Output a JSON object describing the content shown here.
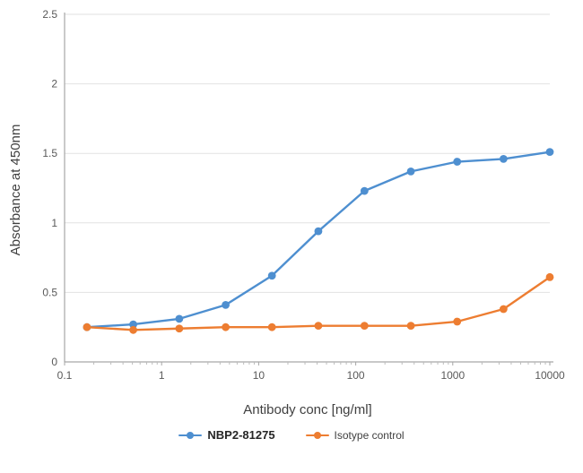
{
  "chart_data": {
    "type": "line",
    "xscale": "log",
    "title": "",
    "xlabel": "Antibody conc [ng/ml]",
    "ylabel": "Absorbance at 450nm",
    "xlim": [
      0.1,
      10000
    ],
    "ylim": [
      0,
      2.5
    ],
    "xticks": [
      0.1,
      1,
      10,
      100,
      1000,
      10000
    ],
    "xtick_labels": [
      "0.1",
      "1",
      "10",
      "100",
      "1000",
      "10000"
    ],
    "yticks": [
      0,
      0.5,
      1,
      1.5,
      2,
      2.5
    ],
    "ytick_labels": [
      "0",
      "0.5",
      "1",
      "1.5",
      "2",
      "2.5"
    ],
    "grid": "horizontal",
    "legend_position": "bottom",
    "x": [
      0.17,
      0.51,
      1.52,
      4.57,
      13.7,
      41.2,
      123,
      370,
      1111,
      3333,
      10000
    ],
    "series": [
      {
        "name": "NBP2-81275",
        "color": "#4e8fd0",
        "values": [
          0.25,
          0.27,
          0.31,
          0.41,
          0.62,
          0.94,
          1.23,
          1.37,
          1.44,
          1.46,
          1.51
        ]
      },
      {
        "name": "Isotype control",
        "color": "#ED7D31",
        "values": [
          0.25,
          0.23,
          0.24,
          0.25,
          0.25,
          0.26,
          0.26,
          0.26,
          0.29,
          0.38,
          0.61
        ]
      }
    ],
    "colors": {
      "grid": "#e2e2e2",
      "axis": "#a6a6a6",
      "tick_text": "#595959",
      "axis_title_text": "#404040"
    }
  }
}
